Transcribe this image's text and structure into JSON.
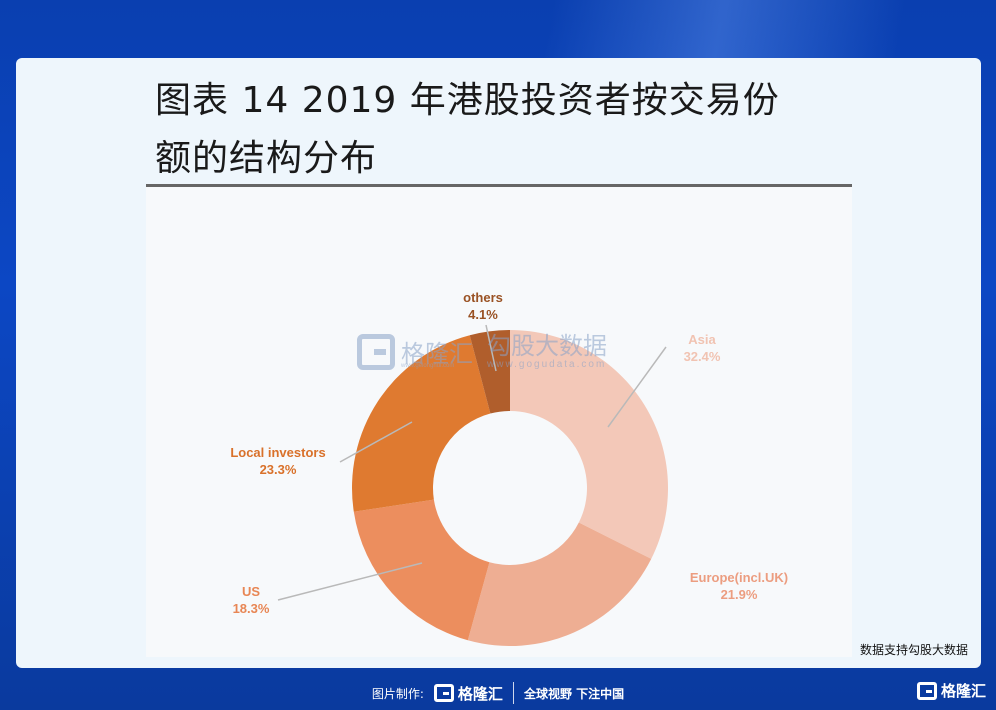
{
  "header": {
    "title_line1": "图表 14  2019 年港股投资者按交易份",
    "title_line2": "额的结构分布"
  },
  "watermark": {
    "brand": "格隆汇",
    "brand_url": "www.gelonghui.com",
    "name": "勾股大数据",
    "url": "www.gogudata.com"
  },
  "source_note": "数据支持勾股大数据",
  "footer": {
    "made_label": "图片制作:",
    "brand": "格隆汇",
    "slogan": "全球视野 下注中国"
  },
  "corner_brand": "格隆汇",
  "chart_data": {
    "type": "pie",
    "variant": "donut",
    "title": "",
    "slices": [
      {
        "label": "Asia",
        "pct_label": "32.4%",
        "value": 32.4,
        "color": "#f3c8b8",
        "text_color": "#f1c3b2"
      },
      {
        "label": "Europe(incl.UK)",
        "pct_label": "21.9%",
        "value": 21.9,
        "color": "#eeae93",
        "text_color": "#ec9d80"
      },
      {
        "label": "US",
        "pct_label": "18.3%",
        "value": 18.3,
        "color": "#ec8e5e",
        "text_color": "#e88654"
      },
      {
        "label": "Local investors",
        "pct_label": "23.3%",
        "value": 23.3,
        "color": "#df7a30",
        "text_color": "#d9712a"
      },
      {
        "label": "others",
        "pct_label": "4.1%",
        "value": 4.1,
        "color": "#b05e2c",
        "text_color": "#9a5224"
      }
    ]
  }
}
